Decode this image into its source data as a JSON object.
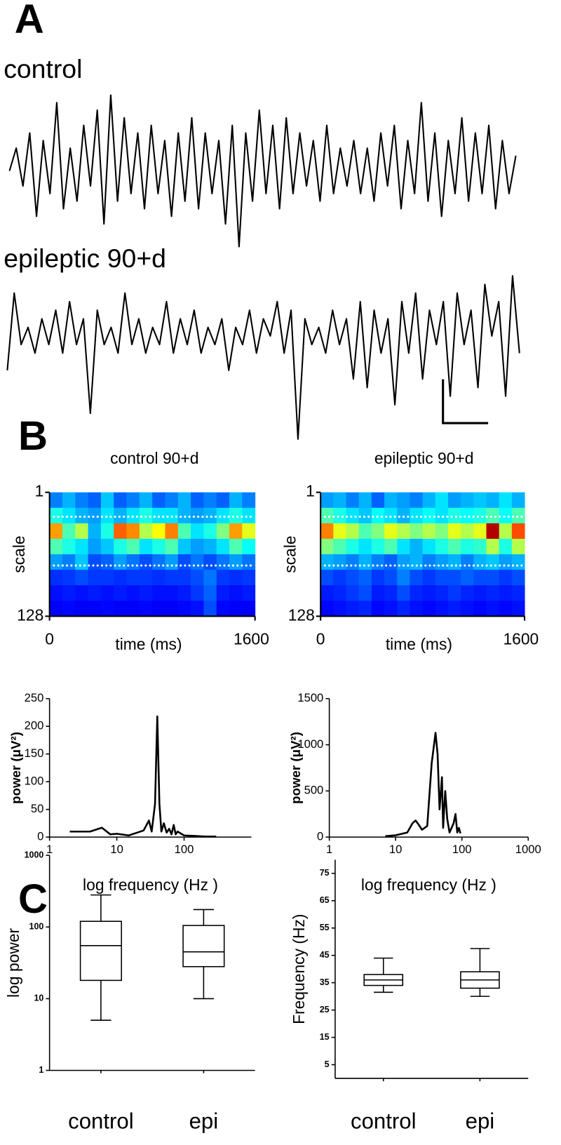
{
  "panel_labels": [
    "A",
    "B",
    "C"
  ],
  "chart_data": [
    {
      "type": "trace",
      "title": "control",
      "color": "#000000",
      "values": [
        0,
        0.3,
        -0.2,
        0.5,
        -0.6,
        0.4,
        -0.3,
        0.9,
        -0.5,
        0.3,
        -0.4,
        0.6,
        -0.2,
        0.8,
        -0.7,
        1.0,
        -0.4,
        0.7,
        -0.3,
        0.5,
        -0.5,
        0.6,
        -0.3,
        0.4,
        -0.6,
        0.5,
        -0.4,
        0.7,
        -0.5,
        0.5,
        -0.3,
        0.4,
        -0.7,
        0.6,
        -1.0,
        0.5,
        -0.4,
        0.8,
        -0.3,
        0.6,
        -0.5,
        0.7,
        -0.3,
        0.5,
        -0.2,
        0.4,
        -0.4,
        0.6,
        -0.3,
        0.3,
        -0.2,
        0.4,
        -0.3,
        0.3,
        -0.4,
        0.5,
        -0.2,
        0.6,
        -0.5,
        0.4,
        -0.3,
        0.9,
        -0.4,
        0.5,
        -0.6,
        0.4,
        -0.3,
        0.7,
        -0.4,
        0.5,
        -0.3,
        0.6,
        -0.5,
        0.4,
        -0.3,
        0.2
      ]
    },
    {
      "type": "trace",
      "title": "epileptic 90+d",
      "color": "#000000",
      "values": [
        -0.2,
        0.7,
        0.1,
        0.3,
        0.0,
        0.4,
        0.1,
        0.5,
        0.0,
        0.6,
        0.1,
        0.4,
        -0.7,
        0.5,
        0.1,
        0.3,
        0.0,
        0.7,
        0.1,
        0.4,
        0.0,
        0.3,
        0.1,
        0.6,
        0.0,
        0.4,
        0.1,
        0.5,
        0.0,
        0.3,
        0.1,
        0.4,
        -0.2,
        0.3,
        0.1,
        0.5,
        0.0,
        0.4,
        0.2,
        0.6,
        0.0,
        0.5,
        -1.0,
        0.4,
        0.1,
        0.3,
        0.0,
        0.5,
        0.1,
        0.4,
        -0.3,
        0.6,
        -0.4,
        0.5,
        0.0,
        0.4,
        -0.6,
        0.6,
        0.0,
        0.7,
        -0.3,
        0.5,
        0.1,
        0.6,
        -0.5,
        0.7,
        0.1,
        0.5,
        -0.4,
        0.8,
        0.2,
        0.6,
        -0.5,
        0.9,
        0.0
      ]
    },
    {
      "type": "heatmap",
      "title": "control 90+d",
      "xlabel": "time (ms)",
      "ylabel": "scale",
      "xlim": [
        0,
        1600
      ],
      "xticks": [
        0,
        1600
      ],
      "ylim": [
        1,
        128
      ],
      "yticks": [
        1,
        128
      ],
      "y_inverted": true,
      "colormap": "jet",
      "hlines": [
        26,
        76
      ],
      "values": [
        [
          0.25,
          0.3,
          0.25,
          0.22,
          0.32,
          0.22,
          0.25,
          0.3,
          0.22,
          0.25,
          0.3,
          0.22,
          0.25,
          0.22,
          0.3,
          0.25
        ],
        [
          0.4,
          0.35,
          0.3,
          0.28,
          0.35,
          0.3,
          0.35,
          0.4,
          0.35,
          0.35,
          0.3,
          0.28,
          0.3,
          0.35,
          0.4,
          0.35
        ],
        [
          0.72,
          0.45,
          0.55,
          0.3,
          0.4,
          0.78,
          0.74,
          0.55,
          0.62,
          0.75,
          0.45,
          0.35,
          0.4,
          0.5,
          0.72,
          0.6
        ],
        [
          0.45,
          0.4,
          0.35,
          0.28,
          0.32,
          0.4,
          0.45,
          0.35,
          0.4,
          0.45,
          0.32,
          0.28,
          0.3,
          0.35,
          0.45,
          0.38
        ],
        [
          0.28,
          0.25,
          0.32,
          0.2,
          0.22,
          0.28,
          0.24,
          0.2,
          0.24,
          0.28,
          0.2,
          0.24,
          0.2,
          0.24,
          0.28,
          0.24
        ],
        [
          0.17,
          0.18,
          0.2,
          0.18,
          0.18,
          0.17,
          0.18,
          0.18,
          0.17,
          0.18,
          0.18,
          0.2,
          0.24,
          0.18,
          0.17,
          0.18
        ],
        [
          0.14,
          0.15,
          0.14,
          0.15,
          0.14,
          0.15,
          0.14,
          0.15,
          0.14,
          0.14,
          0.15,
          0.18,
          0.22,
          0.15,
          0.14,
          0.15
        ],
        [
          0.12,
          0.13,
          0.12,
          0.12,
          0.13,
          0.12,
          0.12,
          0.13,
          0.12,
          0.12,
          0.13,
          0.14,
          0.2,
          0.13,
          0.12,
          0.12
        ]
      ]
    },
    {
      "type": "heatmap",
      "title": "epileptic 90+d",
      "xlabel": "time (ms)",
      "ylabel": "scale",
      "xlim": [
        0,
        1600
      ],
      "xticks": [
        0,
        1600
      ],
      "ylim": [
        1,
        128
      ],
      "yticks": [
        1,
        128
      ],
      "y_inverted": true,
      "colormap": "jet",
      "hlines": [
        26,
        76
      ],
      "values": [
        [
          0.28,
          0.3,
          0.25,
          0.3,
          0.22,
          0.3,
          0.28,
          0.25,
          0.3,
          0.35,
          0.28,
          0.3,
          0.32,
          0.3,
          0.35,
          0.3
        ],
        [
          0.45,
          0.4,
          0.35,
          0.32,
          0.38,
          0.35,
          0.3,
          0.35,
          0.38,
          0.35,
          0.4,
          0.38,
          0.4,
          0.45,
          0.38,
          0.45
        ],
        [
          0.75,
          0.6,
          0.55,
          0.45,
          0.5,
          0.6,
          0.55,
          0.5,
          0.55,
          0.5,
          0.6,
          0.55,
          0.6,
          0.95,
          0.55,
          0.8
        ],
        [
          0.5,
          0.45,
          0.4,
          0.35,
          0.4,
          0.45,
          0.35,
          0.3,
          0.35,
          0.4,
          0.45,
          0.4,
          0.42,
          0.55,
          0.4,
          0.55
        ],
        [
          0.3,
          0.28,
          0.25,
          0.3,
          0.25,
          0.22,
          0.28,
          0.3,
          0.25,
          0.28,
          0.3,
          0.25,
          0.3,
          0.32,
          0.28,
          0.3
        ],
        [
          0.2,
          0.18,
          0.2,
          0.22,
          0.18,
          0.2,
          0.25,
          0.2,
          0.18,
          0.2,
          0.2,
          0.22,
          0.2,
          0.2,
          0.18,
          0.2
        ],
        [
          0.15,
          0.16,
          0.18,
          0.2,
          0.15,
          0.16,
          0.2,
          0.16,
          0.15,
          0.16,
          0.18,
          0.16,
          0.15,
          0.16,
          0.15,
          0.16
        ],
        [
          0.13,
          0.14,
          0.15,
          0.16,
          0.13,
          0.14,
          0.16,
          0.14,
          0.13,
          0.14,
          0.15,
          0.14,
          0.13,
          0.14,
          0.13,
          0.14
        ]
      ]
    },
    {
      "type": "line",
      "xlabel": "log frequency (Hz )",
      "ylabel": "power (μV²)",
      "xlog": true,
      "xlim": [
        1,
        1000
      ],
      "xticks": [
        1,
        10,
        100
      ],
      "ylim": [
        0,
        250
      ],
      "yticks": [
        0,
        50,
        100,
        150,
        200,
        250
      ],
      "color": "#000000",
      "x": [
        2,
        4,
        6,
        8,
        10,
        15,
        20,
        25,
        30,
        33,
        37,
        40,
        43,
        46,
        50,
        55,
        60,
        65,
        70,
        75,
        80,
        100,
        150,
        200,
        300
      ],
      "values": [
        10,
        10,
        17,
        5,
        6,
        3,
        8,
        12,
        30,
        10,
        60,
        218,
        60,
        10,
        25,
        8,
        15,
        5,
        22,
        5,
        10,
        3,
        2,
        1,
        1
      ]
    },
    {
      "type": "line",
      "xlabel": "log frequency (Hz )",
      "ylabel": "power (μV²)",
      "xlog": true,
      "xlim": [
        1,
        1000
      ],
      "xticks": [
        1,
        10,
        100,
        1000
      ],
      "ylim": [
        0,
        1500
      ],
      "yticks": [
        0,
        500,
        1000,
        1500
      ],
      "color": "#000000",
      "x": [
        7,
        10,
        15,
        18,
        20,
        22,
        25,
        30,
        35,
        40,
        43,
        46,
        50,
        52,
        56,
        60,
        65,
        70,
        75,
        80,
        85,
        90,
        95
      ],
      "values": [
        10,
        20,
        50,
        150,
        180,
        140,
        80,
        120,
        800,
        1130,
        900,
        300,
        650,
        100,
        500,
        200,
        50,
        100,
        150,
        250,
        50,
        100,
        40
      ]
    },
    {
      "type": "box",
      "ylabel": "log power",
      "ylog": true,
      "ylim": [
        1,
        1000
      ],
      "yticks": [
        1,
        10,
        100,
        1000
      ],
      "categories": [
        "control",
        "epi"
      ],
      "boxes": [
        {
          "min": 5,
          "q1": 18,
          "median": 55,
          "q3": 120,
          "max": 280
        },
        {
          "min": 10,
          "q1": 28,
          "median": 45,
          "q3": 105,
          "max": 175
        }
      ]
    },
    {
      "type": "box",
      "ylabel": "Frequency (Hz)",
      "ylim": [
        0,
        80
      ],
      "yticks": [
        5,
        15,
        25,
        35,
        45,
        55,
        65,
        75
      ],
      "categories": [
        "control",
        "epi"
      ],
      "boxes": [
        {
          "min": 31.5,
          "q1": 34,
          "median": 36,
          "q3": 38,
          "max": 44
        },
        {
          "min": 30,
          "q1": 33,
          "median": 36,
          "q3": 39,
          "max": 47.5
        }
      ]
    }
  ]
}
